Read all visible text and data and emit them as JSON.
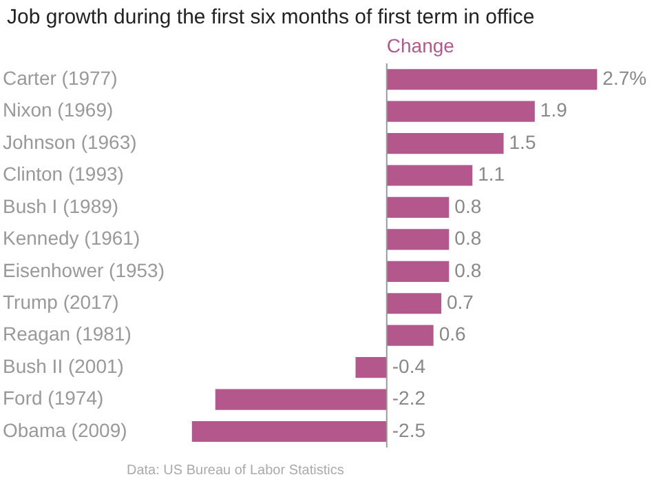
{
  "chart_data": {
    "type": "bar",
    "orientation": "horizontal",
    "title": "Job growth during the first six months of first term in office",
    "categories": [
      "Carter (1977)",
      "Nixon (1969)",
      "Johnson (1963)",
      "Clinton (1993)",
      "Bush I (1989)",
      "Kennedy (1961)",
      "Eisenhower (1953)",
      "Trump (2017)",
      "Reagan (1981)",
      "Bush II (2001)",
      "Ford (1974)",
      "Obama (2009)"
    ],
    "series": [
      {
        "name": "Change",
        "color": "#b3578c",
        "values": [
          2.7,
          1.9,
          1.5,
          1.1,
          0.8,
          0.8,
          0.8,
          0.7,
          0.6,
          -0.4,
          -2.2,
          -2.5
        ],
        "value_labels": [
          "2.7%",
          "1.9",
          "1.5",
          "1.1",
          "0.8",
          "0.8",
          "0.8",
          "0.7",
          "0.6",
          "-0.4",
          "-2.2",
          "-2.5"
        ]
      }
    ],
    "legend": false,
    "annotations": [
      "Data: US Bureau of Labor Statistics"
    ]
  }
}
